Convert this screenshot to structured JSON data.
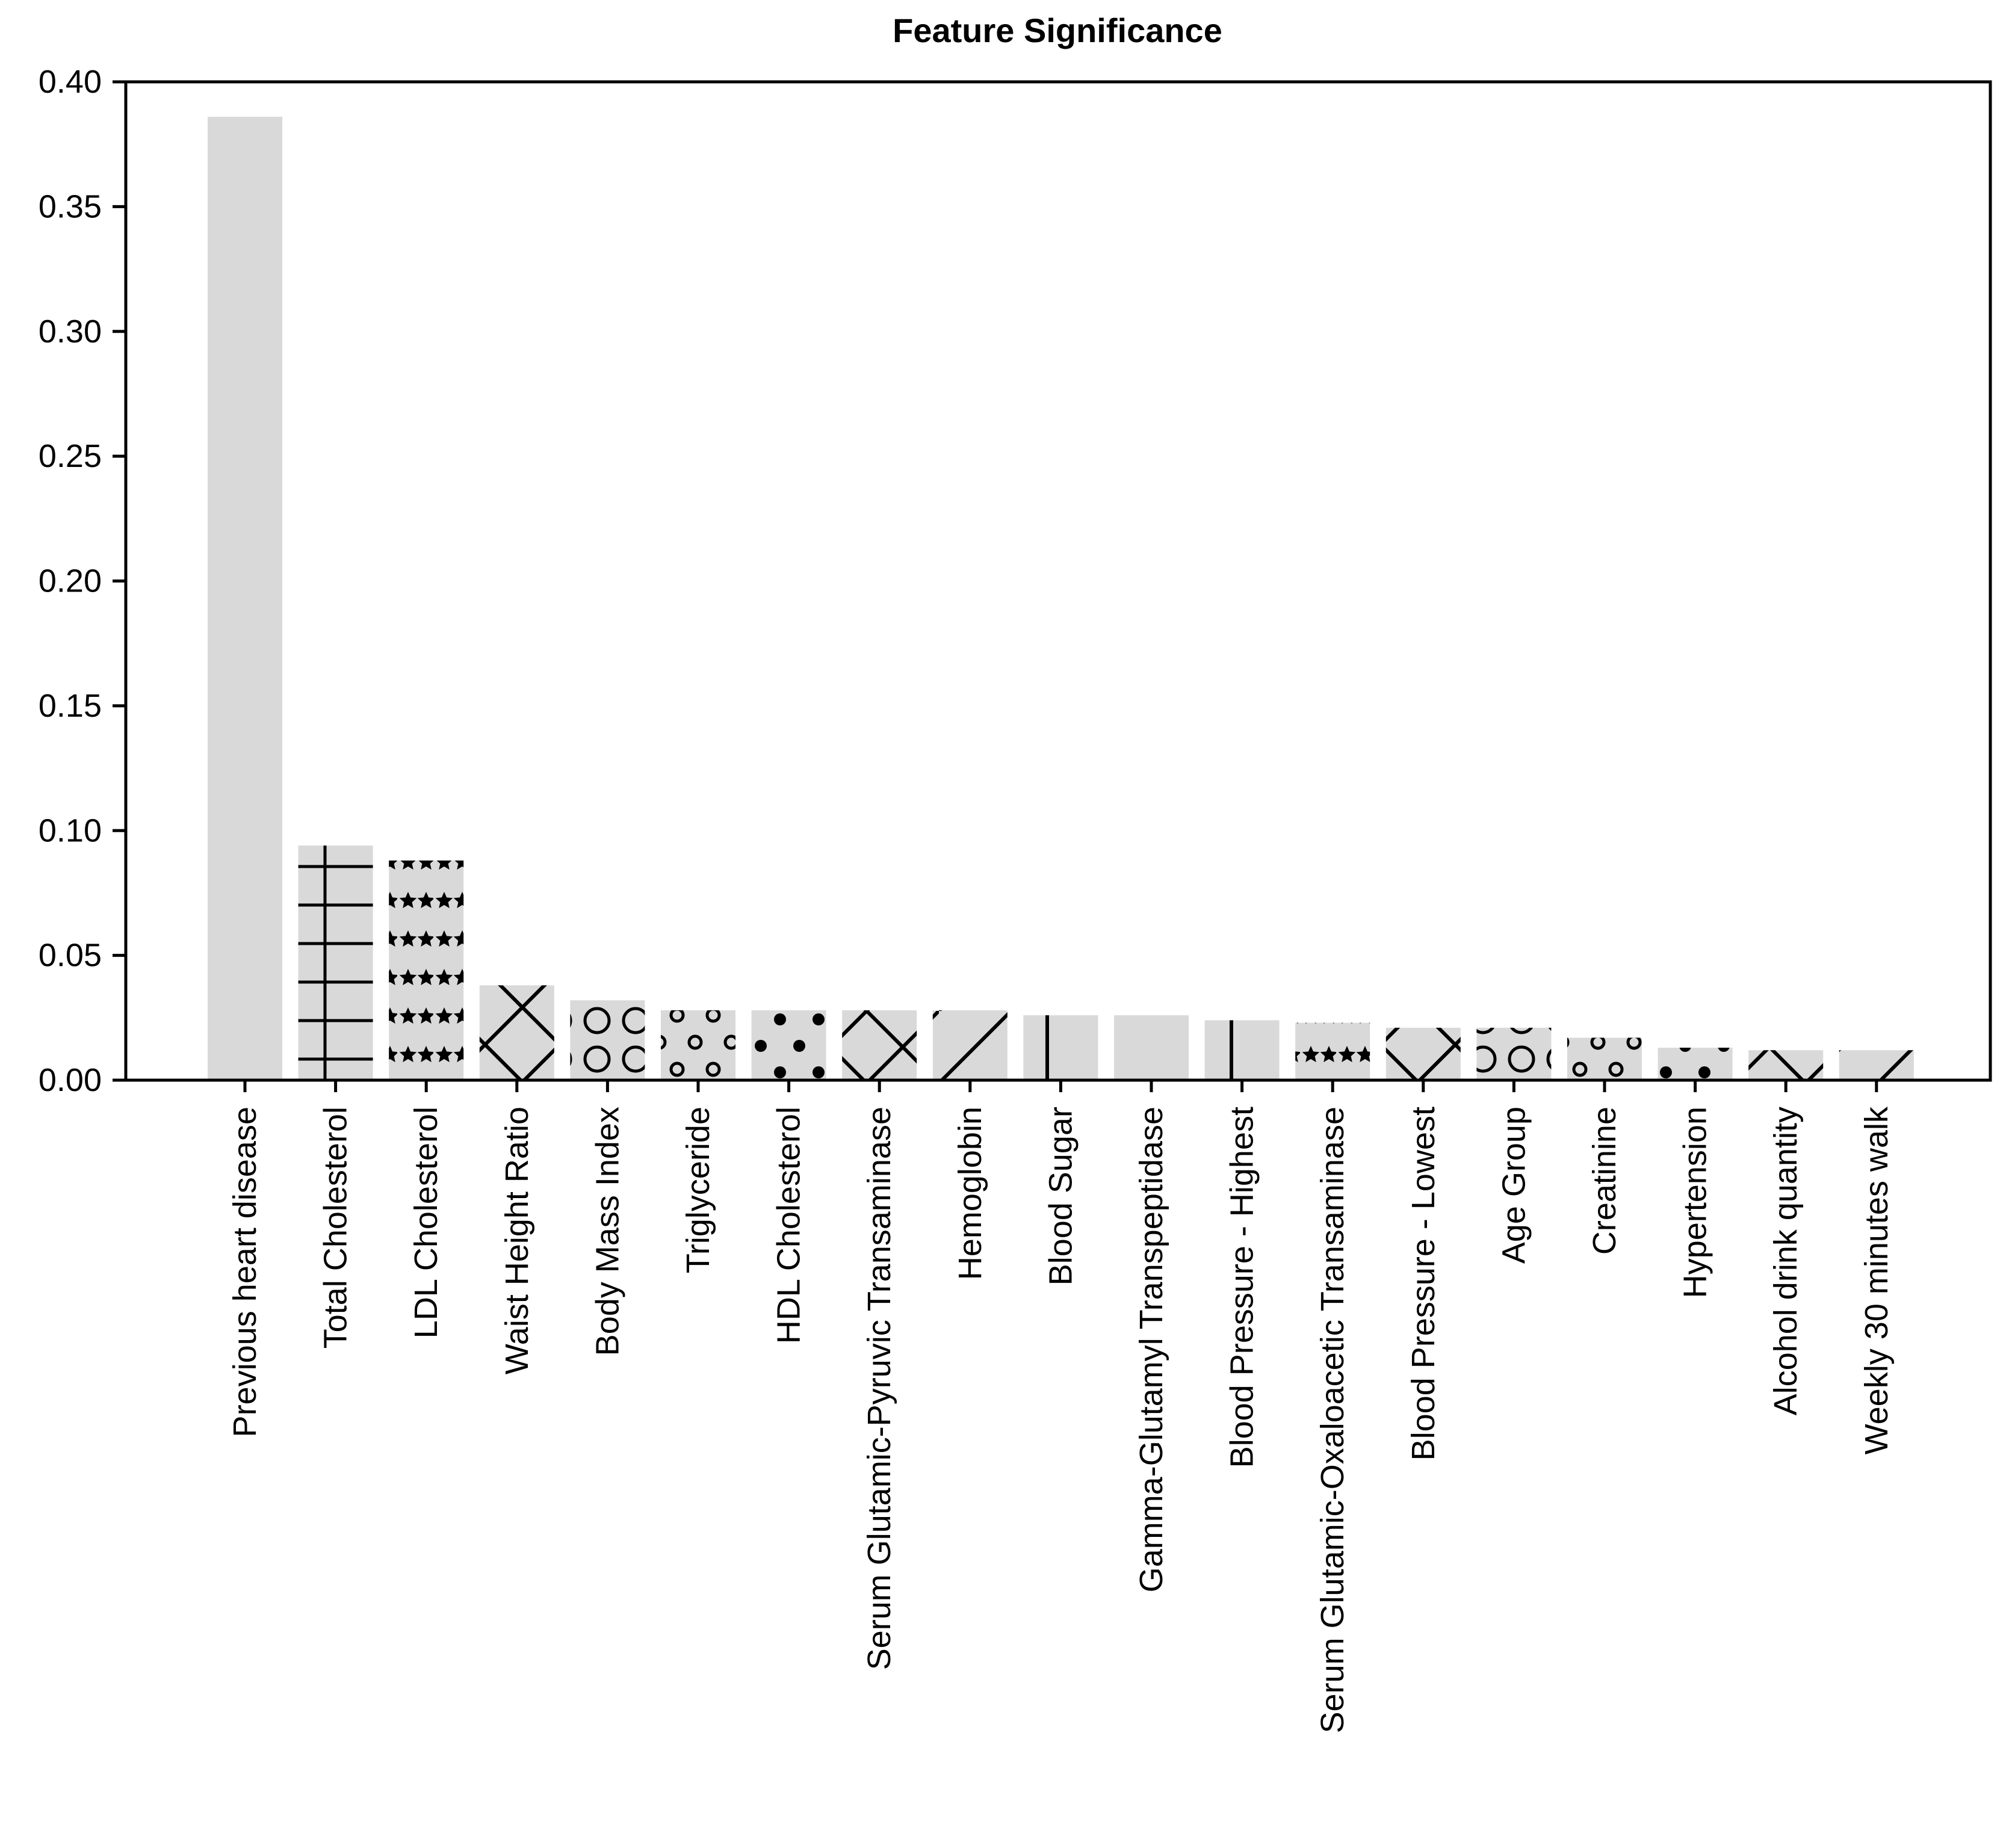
{
  "chart_data": {
    "type": "bar",
    "title": "Feature Significance",
    "xlabel": "",
    "ylabel": "",
    "ylim": [
      0,
      0.4
    ],
    "yticks": [
      "0.00",
      "0.05",
      "0.10",
      "0.15",
      "0.20",
      "0.25",
      "0.30",
      "0.35",
      "0.40"
    ],
    "grid": false,
    "bar_color": "#d9d9d9",
    "categories": [
      "Previous heart disease",
      "Total Cholesterol",
      "LDL Cholesterol",
      "Waist Height Ratio",
      "Body Mass Index",
      "Triglyceride",
      "HDL Cholesterol",
      "Serum Glutamic-Pyruvic Transaminase",
      "Hemoglobin",
      "Blood Sugar",
      "Gamma-Glutamyl Transpeptidase",
      "Blood Pressure - Highest",
      "Serum Glutamic-Oxaloacetic Transaminase",
      "Blood Pressure - Lowest",
      "Age Group",
      "Creatinine",
      "Hypertension",
      "Alcohol drink quantity",
      "Weekly 30 minutes walk"
    ],
    "values": [
      0.386,
      0.094,
      0.088,
      0.038,
      0.032,
      0.028,
      0.028,
      0.028,
      0.028,
      0.026,
      0.026,
      0.024,
      0.023,
      0.021,
      0.021,
      0.017,
      0.013,
      0.012,
      0.012
    ],
    "hatches": [
      "none",
      "grid",
      "stars",
      "diamond",
      "rings",
      "small-rings",
      "dots",
      "cross",
      "diagonal",
      "vertical",
      "none",
      "plus",
      "stars",
      "diamond",
      "rings",
      "small-rings",
      "dots",
      "cross",
      "diagonal"
    ]
  }
}
